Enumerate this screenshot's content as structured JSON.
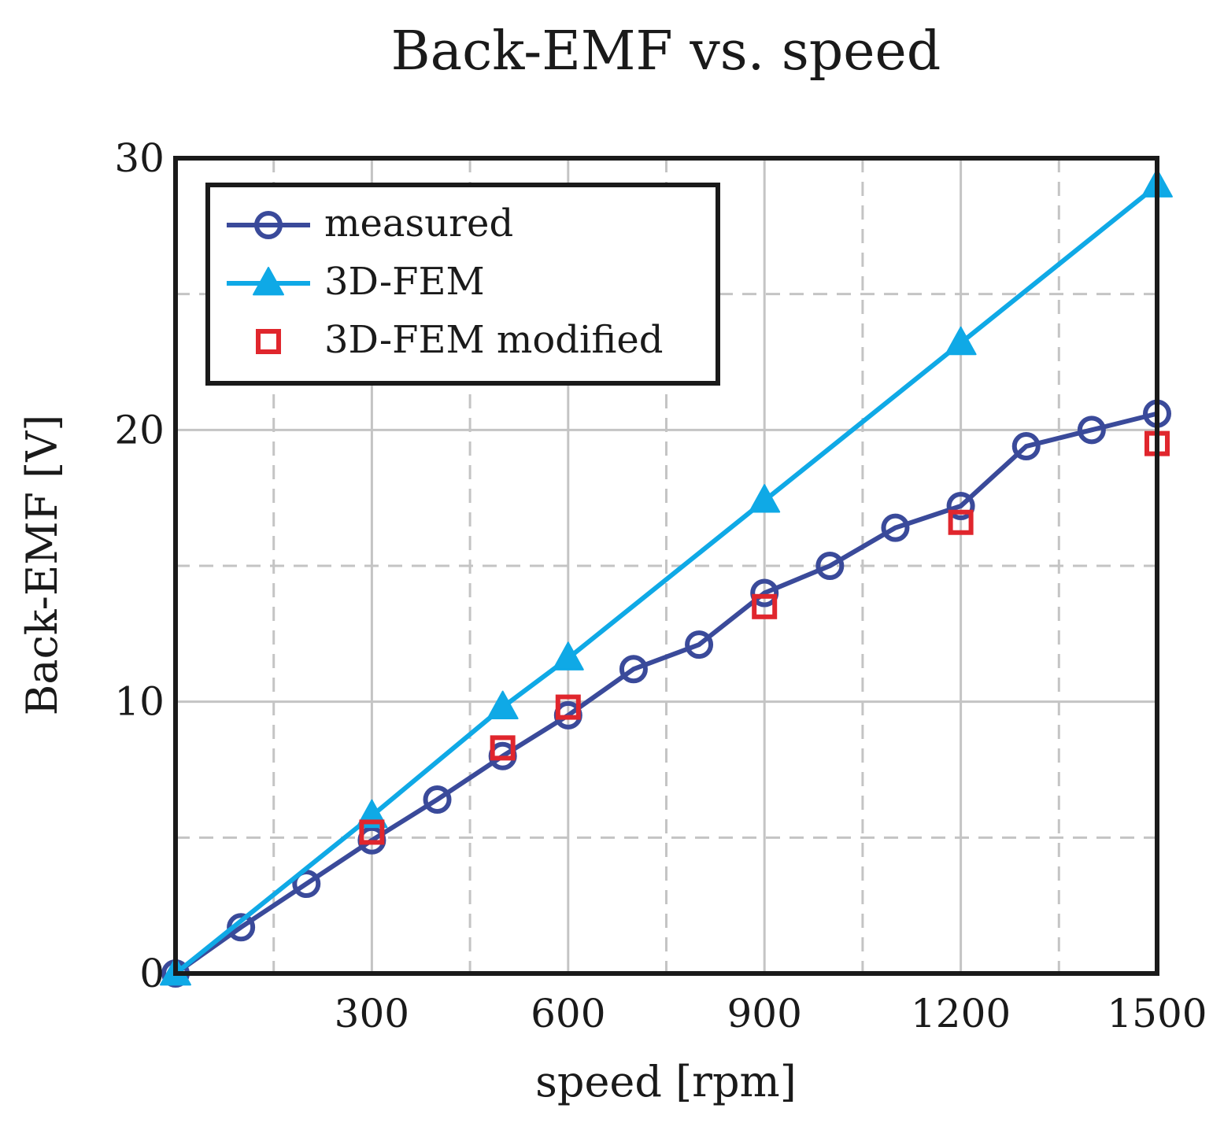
{
  "chart_data": {
    "type": "line",
    "title": "Back-EMF vs. speed",
    "xlabel": "speed [rpm]",
    "ylabel": "Back-EMF [V]",
    "xlim": [
      0,
      1500
    ],
    "ylim": [
      0,
      30
    ],
    "xticks": [
      300,
      600,
      900,
      1200,
      1500
    ],
    "xtick_labels": [
      "300",
      "600",
      "900",
      "1200",
      "1500"
    ],
    "yticks": [
      0,
      10,
      20,
      30
    ],
    "ytick_labels": [
      "0",
      "10",
      "20",
      "30"
    ],
    "x_minor_dashed": [
      150,
      450,
      750,
      1050,
      1350
    ],
    "y_minor_dashed": [
      5,
      15,
      25
    ],
    "grid": true,
    "legend_position": "top-left",
    "series": [
      {
        "name": "measured",
        "color": "#3a4a9a",
        "marker": "circle",
        "line": true,
        "x": [
          0,
          100,
          200,
          300,
          400,
          500,
          600,
          700,
          800,
          900,
          1000,
          1100,
          1200,
          1300,
          1400,
          1500
        ],
        "values": [
          0,
          1.7,
          3.3,
          4.9,
          6.4,
          8.0,
          9.5,
          11.2,
          12.1,
          14.0,
          15.0,
          16.4,
          17.2,
          19.4,
          20.0,
          20.6
        ]
      },
      {
        "name": "3D-FEM",
        "color": "#0fa9e6",
        "marker": "triangle",
        "line": true,
        "x": [
          0,
          300,
          500,
          600,
          900,
          1200,
          1500
        ],
        "values": [
          0,
          5.8,
          9.8,
          11.6,
          17.4,
          23.2,
          29.0
        ]
      },
      {
        "name": "3D-FEM modified",
        "color": "#e0262d",
        "marker": "square",
        "line": false,
        "x": [
          300,
          500,
          600,
          900,
          1200,
          1500
        ],
        "values": [
          5.2,
          8.3,
          9.8,
          13.5,
          16.6,
          19.5
        ]
      }
    ]
  }
}
